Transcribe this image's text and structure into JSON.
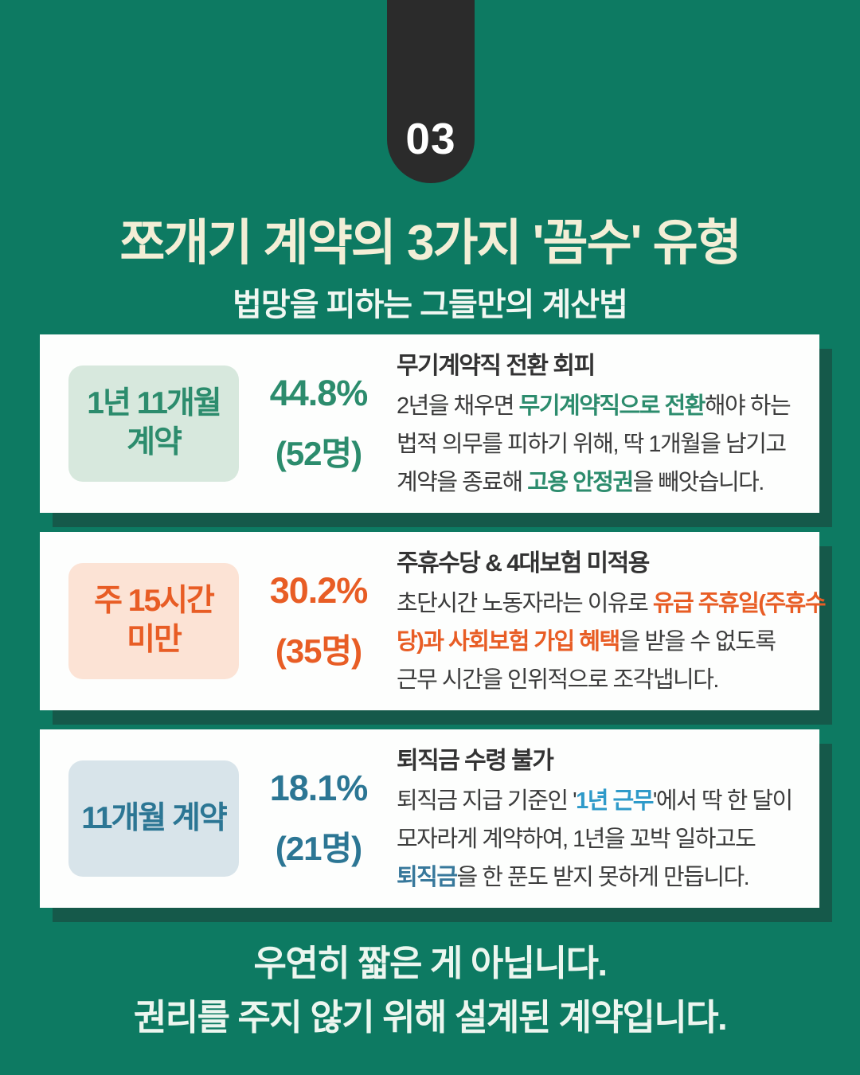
{
  "badge": {
    "number": "03"
  },
  "header": {
    "title": "쪼개기 계약의 3가지 '꼼수' 유형",
    "subtitle": "법망을 피하는 그들만의 계산법"
  },
  "colors": {
    "background": "#0d7a62",
    "card_shadow": "#15594a",
    "badge_bg": "#2b2b2b",
    "title": "#f3eed6",
    "teal_accent": "#2c8c6d",
    "orange_accent": "#e85d25",
    "blue_accent": "#2c7694"
  },
  "cards": [
    {
      "accent": "#2c8c6d",
      "label_bg": "#d7e8dd",
      "label_lines": [
        "1년 11개월",
        "계약"
      ],
      "percent": "44.8%",
      "count": "(52명)",
      "heading": "무기계약직 전환 회피",
      "body": [
        [
          {
            "t": "2년을 채우면 "
          },
          {
            "t": "무기계약직으로 전환",
            "h": true
          },
          {
            "t": "해야 하는"
          }
        ],
        [
          {
            "t": "법적 의무를 피하기 위해, 딱 1개월을 남기고"
          }
        ],
        [
          {
            "t": "계약을 종료해 "
          },
          {
            "t": "고용 안정권",
            "h": true
          },
          {
            "t": "을 빼앗습니다."
          }
        ]
      ]
    },
    {
      "accent": "#e85d25",
      "label_bg": "#fce3d5",
      "label_lines": [
        "주 15시간",
        "미만"
      ],
      "percent": "30.2%",
      "count": "(35명)",
      "heading": "주휴수당 & 4대보험 미적용",
      "body": [
        [
          {
            "t": "초단시간 노동자라는 이유로 "
          },
          {
            "t": "유급 주휴일(주휴수",
            "h": true
          }
        ],
        [
          {
            "t": "당)과 사회보험 가입 혜택",
            "h": true
          },
          {
            "t": "을 받을 수 없도록"
          }
        ],
        [
          {
            "t": "근무 시간을 인위적으로 조각냅니다."
          }
        ]
      ]
    },
    {
      "accent": "#2c7694",
      "label_bg": "#d8e4ea",
      "label_lines": [
        "11개월 계약"
      ],
      "percent": "18.1%",
      "count": "(21명)",
      "heading": "퇴직금 수령 불가",
      "body": [
        [
          {
            "t": "퇴직금 지급 기준인 '"
          },
          {
            "t": "1년 근무",
            "h": true,
            "c": "#2e9ac9"
          },
          {
            "t": "'에서 딱 한 달이"
          }
        ],
        [
          {
            "t": "모자라게 계약하여, 1년을 꼬박 일하고도"
          }
        ],
        [
          {
            "t": "퇴직금",
            "h": true,
            "c": "#37789b"
          },
          {
            "t": "을 한 푼도 받지 못하게 만듭니다."
          }
        ]
      ]
    }
  ],
  "footer": {
    "line1": "우연히 짧은 게 아닙니다.",
    "line2": "권리를 주지 않기 위해 설계된 계약입니다."
  }
}
